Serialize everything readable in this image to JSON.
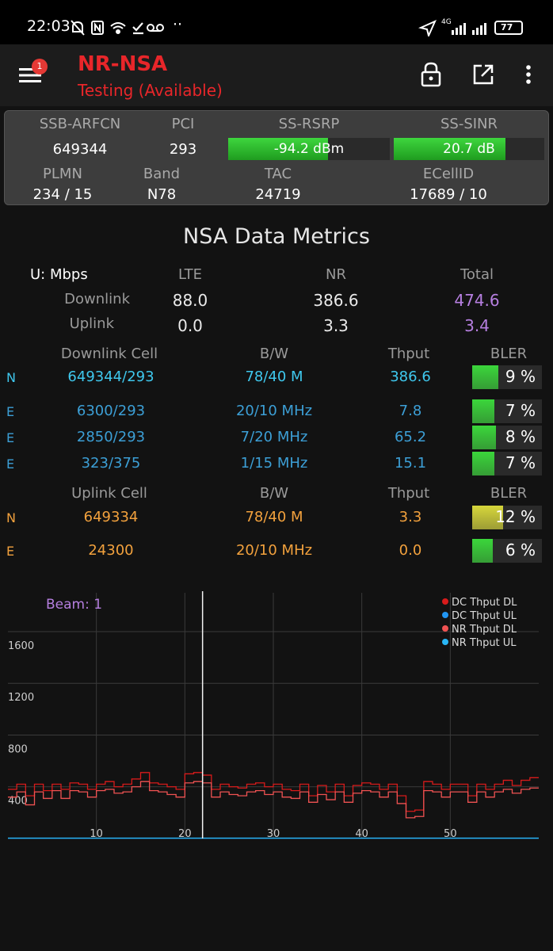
{
  "status": {
    "time": "22:03",
    "extra_icons": "··",
    "network": "4G",
    "battery": "77"
  },
  "app": {
    "title": "NR-NSA",
    "subtitle": "Testing (Available)",
    "notification_count": "1"
  },
  "cell_info": {
    "labels": {
      "arfcn": "SSB-ARFCN",
      "pci": "PCI",
      "rsrp": "SS-RSRP",
      "sinr": "SS-SINR",
      "plmn": "PLMN",
      "band": "Band",
      "tac": "TAC",
      "ecellid": "ECellID"
    },
    "arfcn": "649344",
    "pci": "293",
    "rsrp": "-94.2 dBm",
    "rsrp_level": 0.62,
    "sinr": "20.7 dB",
    "sinr_level": 0.74,
    "plmn": "234 / 15",
    "band": "N78",
    "tac": "24719",
    "ecellid": "17689 / 10"
  },
  "metrics": {
    "title": "NSA Data Metrics",
    "unit_label": "U: Mbps",
    "col_lte": "LTE",
    "col_nr": "NR",
    "col_total": "Total",
    "downlink_label": "Downlink",
    "uplink_label": "Uplink",
    "dl_lte": "88.0",
    "dl_nr": "386.6",
    "dl_total": "474.6",
    "ul_lte": "0.0",
    "ul_nr": "3.3",
    "ul_total": "3.4",
    "colors": {
      "total": "#b67fe0"
    }
  },
  "downlink_cells": {
    "headers": {
      "cell": "Downlink Cell",
      "bw": "B/W",
      "thput": "Thput",
      "bler": "BLER"
    },
    "rows": [
      {
        "tag": "N",
        "cell": "649344/293",
        "bw": "78/40 M",
        "thput": "386.6",
        "bler": "9 %",
        "bler_pct": 9,
        "bler_fill": 0.38,
        "color": "#3bd63b"
      },
      {
        "tag": "E",
        "cell": "6300/293",
        "bw": "20/10 MHz",
        "thput": "7.8",
        "bler": "7 %",
        "bler_pct": 7,
        "bler_fill": 0.32,
        "color": "#3bd63b"
      },
      {
        "tag": "E",
        "cell": "2850/293",
        "bw": "7/20 MHz",
        "thput": "65.2",
        "bler": "8 %",
        "bler_pct": 8,
        "bler_fill": 0.34,
        "color": "#3bd63b"
      },
      {
        "tag": "E",
        "cell": "323/375",
        "bw": "1/15 MHz",
        "thput": "15.1",
        "bler": "7 %",
        "bler_pct": 7,
        "bler_fill": 0.32,
        "color": "#3bd63b"
      }
    ]
  },
  "uplink_cells": {
    "headers": {
      "cell": "Uplink Cell",
      "bw": "B/W",
      "thput": "Thput",
      "bler": "BLER"
    },
    "rows": [
      {
        "tag": "N",
        "cell": "649334",
        "bw": "78/40 M",
        "thput": "3.3",
        "bler": "12 %",
        "bler_pct": 12,
        "bler_fill": 0.44,
        "color": "#d6d63b"
      },
      {
        "tag": "E",
        "cell": "24300",
        "bw": "20/10 MHz",
        "thput": "0.0",
        "bler": "6 %",
        "bler_pct": 6,
        "bler_fill": 0.3,
        "color": "#3bd63b"
      }
    ]
  },
  "chart_data": {
    "type": "line",
    "title": "Beam: 1",
    "xlim": [
      0,
      60
    ],
    "ylim": [
      0,
      1900
    ],
    "x_ticks": [
      10,
      20,
      30,
      40,
      50
    ],
    "y_ticks": [
      400,
      800,
      1200,
      1600
    ],
    "cursor_x": 22,
    "legend_position": "top-right",
    "series": [
      {
        "name": "DC Thput DL",
        "color": "#d81b1b",
        "values": [
          380,
          420,
          330,
          420,
          370,
          420,
          380,
          430,
          420,
          380,
          420,
          440,
          400,
          420,
          460,
          510,
          430,
          420,
          400,
          380,
          500,
          510,
          490,
          380,
          420,
          400,
          390,
          420,
          430,
          400,
          420,
          380,
          370,
          420,
          330,
          410,
          360,
          420,
          330,
          410,
          430,
          420,
          380,
          420,
          330,
          210,
          220,
          440,
          420,
          380,
          420,
          420,
          330,
          420,
          380,
          420,
          450,
          410,
          450,
          470
        ]
      },
      {
        "name": "DC Thput UL",
        "color": "#2196f3",
        "values": [
          2,
          2,
          2,
          2,
          2,
          2,
          2,
          2,
          2,
          2,
          2,
          2,
          2,
          2,
          2,
          2,
          2,
          2,
          2,
          2,
          2,
          2,
          2,
          2,
          2,
          2,
          2,
          2,
          2,
          2,
          2,
          2,
          2,
          2,
          2,
          2,
          2,
          2,
          2,
          2,
          2,
          2,
          2,
          2,
          2,
          2,
          2,
          2,
          2,
          2,
          2,
          2,
          2,
          2,
          2,
          2,
          2,
          2,
          2,
          2
        ]
      },
      {
        "name": "NR Thput DL",
        "color": "#f05252",
        "values": [
          320,
          360,
          260,
          360,
          310,
          370,
          310,
          370,
          360,
          320,
          370,
          380,
          350,
          360,
          400,
          440,
          370,
          360,
          340,
          320,
          430,
          440,
          430,
          320,
          360,
          340,
          330,
          360,
          370,
          340,
          360,
          320,
          310,
          360,
          280,
          340,
          300,
          360,
          280,
          350,
          370,
          360,
          320,
          360,
          270,
          160,
          170,
          370,
          360,
          320,
          360,
          360,
          280,
          360,
          320,
          360,
          380,
          350,
          380,
          390
        ]
      },
      {
        "name": "NR Thput UL",
        "color": "#29b6f6",
        "values": [
          3,
          3,
          3,
          3,
          3,
          3,
          3,
          3,
          3,
          3,
          3,
          3,
          3,
          3,
          3,
          3,
          3,
          3,
          3,
          3,
          3,
          3,
          3,
          3,
          3,
          3,
          3,
          3,
          3,
          3,
          3,
          3,
          3,
          3,
          3,
          3,
          3,
          3,
          3,
          3,
          3,
          3,
          3,
          3,
          3,
          3,
          3,
          3,
          3,
          3,
          3,
          3,
          3,
          3,
          3,
          3,
          3,
          3,
          3,
          3
        ]
      }
    ]
  }
}
